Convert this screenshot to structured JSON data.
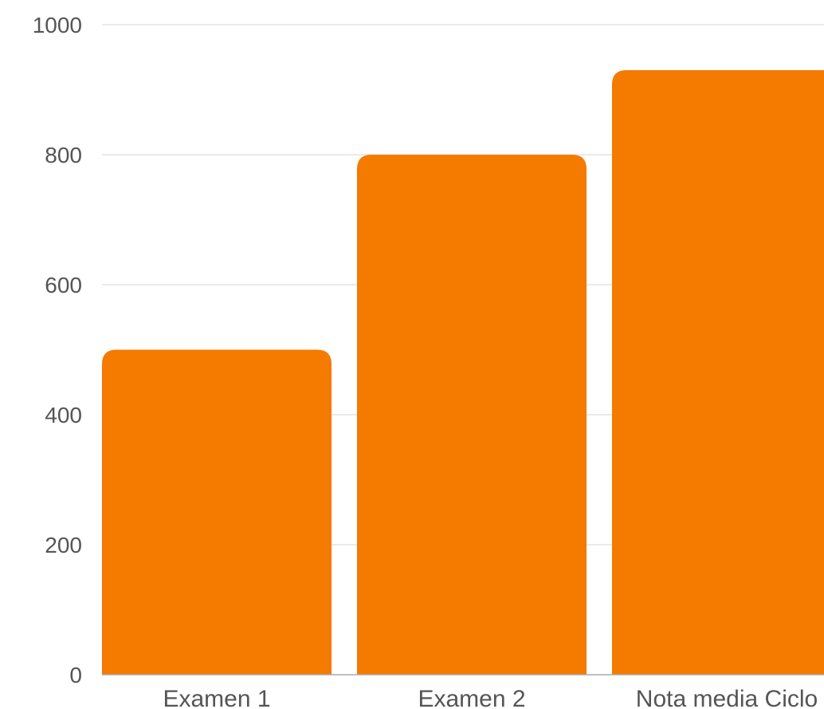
{
  "chart_data": {
    "type": "bar",
    "categories": [
      "Examen 1",
      "Examen 2",
      "Nota media Ciclo"
    ],
    "values": [
      500,
      800,
      930
    ],
    "title": "",
    "xlabel": "",
    "ylabel": "",
    "ylim": [
      0,
      1000
    ],
    "yticks": [
      0,
      200,
      400,
      600,
      800,
      1000
    ],
    "grid": true,
    "legend": "none",
    "colors": {
      "bar": "#f57a00",
      "grid": "#dddddd",
      "axis": "#aaaaaa",
      "text": "#555555"
    }
  }
}
